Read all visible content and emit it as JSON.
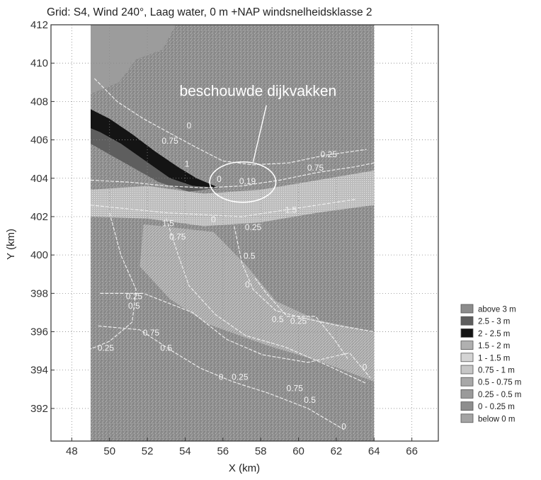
{
  "chart_data": {
    "type": "heatmap",
    "title": "Grid: S4, Wind 240°, Laag water, 0 m +NAP windsnelheidsklasse 2",
    "xlabel": "X (km)",
    "ylabel": "Y (km)",
    "xlim": [
      46.9,
      67.4
    ],
    "ylim": [
      390.3,
      412.0
    ],
    "grid": true,
    "x_ticks": [
      48,
      50,
      52,
      54,
      56,
      58,
      60,
      62,
      64,
      66
    ],
    "y_ticks": [
      392,
      394,
      396,
      398,
      400,
      402,
      404,
      406,
      408,
      410,
      412
    ],
    "domain_x": [
      49.0,
      64.0
    ],
    "annotation": "beschouwde dijkvakken",
    "annotation_ellipse": {
      "cx": 57.05,
      "cy": 403.8,
      "rx": 1.75,
      "ry": 1.05
    },
    "legend_position": "right",
    "legend": [
      {
        "label": "above 3 m",
        "color": "#8c8c8c"
      },
      {
        "label": "2.5 - 3 m",
        "color": "#5e5e5e"
      },
      {
        "label": "2 - 2.5 m",
        "color": "#141414"
      },
      {
        "label": "1.5 - 2 m",
        "color": "#b0b0b0"
      },
      {
        "label": "1 - 1.5 m",
        "color": "#d4d4d4"
      },
      {
        "label": "0.75 - 1 m",
        "color": "#c6c6c6"
      },
      {
        "label": "0.5 - 0.75 m",
        "color": "#a8a8a8"
      },
      {
        "label": "0.25 - 0.5 m",
        "color": "#9a9a9a"
      },
      {
        "label": "0 - 0.25 m",
        "color": "#8e8e8e"
      },
      {
        "label": "below 0 m",
        "color": "#a4a4a4"
      }
    ],
    "contour_labels": [
      {
        "text": "0",
        "x": 54.2,
        "y": 406.6
      },
      {
        "text": "0.75",
        "x": 53.2,
        "y": 405.8
      },
      {
        "text": "0.25",
        "x": 61.6,
        "y": 405.1
      },
      {
        "text": "0.75",
        "x": 60.9,
        "y": 404.4
      },
      {
        "text": "1",
        "x": 54.1,
        "y": 404.6
      },
      {
        "text": "0",
        "x": 55.8,
        "y": 403.8
      },
      {
        "text": "0.19",
        "x": 57.3,
        "y": 403.7
      },
      {
        "text": "1.5",
        "x": 59.6,
        "y": 402.2
      },
      {
        "text": "1.5",
        "x": 53.1,
        "y": 401.5
      },
      {
        "text": "0",
        "x": 55.5,
        "y": 401.7
      },
      {
        "text": "0.25",
        "x": 57.6,
        "y": 401.3
      },
      {
        "text": "0.75",
        "x": 53.6,
        "y": 400.8
      },
      {
        "text": "0.5",
        "x": 57.4,
        "y": 399.8
      },
      {
        "text": "0",
        "x": 57.3,
        "y": 398.3
      },
      {
        "text": "0.25",
        "x": 51.3,
        "y": 397.7
      },
      {
        "text": "0.5",
        "x": 51.3,
        "y": 397.2
      },
      {
        "text": "0.5",
        "x": 58.9,
        "y": 396.5
      },
      {
        "text": "0.25",
        "x": 60.0,
        "y": 396.4
      },
      {
        "text": "0.75",
        "x": 52.2,
        "y": 395.8
      },
      {
        "text": "0.25",
        "x": 49.8,
        "y": 395.0
      },
      {
        "text": "0.5",
        "x": 53.0,
        "y": 395.0
      },
      {
        "text": "0",
        "x": 63.5,
        "y": 394.0
      },
      {
        "text": "0",
        "x": 55.9,
        "y": 393.5
      },
      {
        "text": "0.25",
        "x": 56.9,
        "y": 393.5
      },
      {
        "text": "0.75",
        "x": 59.8,
        "y": 392.9
      },
      {
        "text": "0.5",
        "x": 60.6,
        "y": 392.3
      },
      {
        "text": "0",
        "x": 62.4,
        "y": 390.9
      }
    ]
  }
}
